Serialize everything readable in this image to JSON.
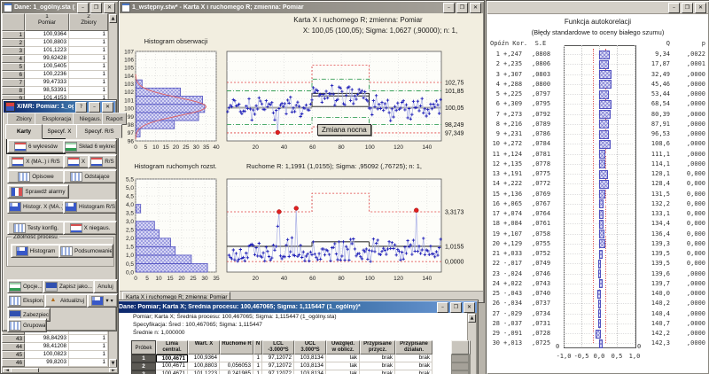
{
  "colors": {
    "titlebar_active": "#0a246a",
    "titlebar_inactive": "#7e7b74",
    "desktop": "#b8b4ab",
    "chart_bg": "#f2eee0",
    "bar_fill": "#dcdcf6",
    "bar_edge": "#5050c0",
    "series": "#2020b8",
    "series_line": "#a8aee6",
    "limit_red": "#e04040",
    "warn_green": "#38a058",
    "center_gray": "#a8a8a8",
    "outlier_red": "#e02020"
  },
  "data_window": {
    "title": "Dane: 1_ogólny.sta (10 zm...",
    "col_headers": [
      {
        "num": "1",
        "label": "Pomiar"
      },
      {
        "num": "2",
        "label": "Zbiory"
      }
    ],
    "rows_top": [
      [
        "1",
        "100,9364",
        "1"
      ],
      [
        "2",
        "100,8803",
        "1"
      ],
      [
        "3",
        "101,1223",
        "1"
      ],
      [
        "4",
        "99,62428",
        "1"
      ],
      [
        "5",
        "100,5405",
        "1"
      ],
      [
        "6",
        "100,2236",
        "1"
      ],
      [
        "7",
        "99,47333",
        "1"
      ],
      [
        "8",
        "98,53391",
        "1"
      ],
      [
        "9",
        "101,4153",
        "1"
      ]
    ],
    "rows_bottom": [
      [
        "42",
        "99,86145",
        "1"
      ],
      [
        "43",
        "98,84293",
        "1"
      ],
      [
        "44",
        "98,41208",
        "1"
      ],
      [
        "45",
        "100,0823",
        "1"
      ],
      [
        "46",
        "99,8203",
        "1"
      ]
    ]
  },
  "xmr_dialog": {
    "title": "X/MR: Pomiar: 1_ogólny.sta",
    "tabs_back": [
      "Zbiory",
      "Eksploracja",
      "Niegaus.",
      "Raport"
    ],
    "tabs_front": [
      "Karty",
      "Specyf. X",
      "Specyf. R/S"
    ],
    "active_tab": "Karty",
    "group_label": "Zdolność procesu",
    "buttons": {
      "six_charts": "6 wykresów",
      "sklad": "Skład 6 wykres.",
      "x_ma_rs": "X (MA..) i R/S",
      "x": "X",
      "rs": "R/S",
      "opisowe": "Opisowe",
      "odstajace": "Odstające",
      "sprawdz": "Sprawdź alarmy",
      "hist_x": "Histogr. X (MA..)",
      "hist_rs": "Histogram R/S",
      "testy": "Testy konfig.",
      "x_niegaus": "X niegaus.",
      "histogram": "Histogram",
      "podsumowanie": "Podsumowanie",
      "opcje": "Opcje...",
      "zapisz": "Zapisz jako...",
      "anuluj": "Anuluj",
      "eksploruj": "Eksploruj...",
      "aktualizuj": "Aktualizuj",
      "dropdown": "▾",
      "zabezpiecz": "Zabezpiecz.",
      "grupowani": "Grupowani"
    }
  },
  "chart_window": {
    "title": "1_wstępny.stw* - Karta X i ruchomego R; zmienna: Pomiar",
    "heading1": "Karta X i ruchomego R; zmienna:  Pomiar",
    "heading2": "X: 100,05 (100,05); Sigma: 1,0627 (,90000); n: 1,",
    "hist_obs_title": "Histogram obserwacji",
    "hist_mr_title": "Histogram ruchomych rozst.",
    "r_title": "Ruchome R: 1,1991 (1,0155); Sigma: ,95092 (,76725); n: 1,",
    "tab_label": "Karta X i ruchomego R; zmienna: Pomiar"
  },
  "chart_data": {
    "hist_obs": {
      "type": "bar",
      "orientation": "horizontal",
      "title": "Histogram obserwacji",
      "categories": [
        97,
        98,
        99,
        100,
        101,
        102,
        103
      ],
      "values": [
        2,
        19,
        31,
        34,
        33,
        22,
        3
      ],
      "xlim": [
        0,
        40
      ],
      "ylim": [
        96,
        107
      ],
      "x_ticks": [
        0,
        5,
        10,
        15,
        20,
        25,
        30,
        35,
        40
      ],
      "curve": {
        "mean": 100.2,
        "sd": 1.12,
        "peak": 35
      }
    },
    "x_chart": {
      "type": "line",
      "n": 150,
      "center": 100.05,
      "ucl": 102.75,
      "lcl": 97.349,
      "warn_hi": 101.85,
      "warn_lo": 98.249,
      "ylim": [
        96.49,
        106.07
      ],
      "shift": {
        "from": 59,
        "to": 99,
        "center": 101.3,
        "ucl": 104.6,
        "lcl": 98.0,
        "warn_hi": 103.1,
        "warn_lo": 99.0
      },
      "x_ticks": [
        20,
        40,
        60,
        80,
        100,
        120,
        140
      ],
      "right_labels": [
        "102,75",
        "101,85",
        "100,05",
        "98,249",
        "97,349"
      ],
      "right_label_vals": [
        102.75,
        101.85,
        100.05,
        98.249,
        97.349
      ],
      "outlier": {
        "index": 35,
        "value": 97.4
      },
      "annotation": "Zmiana nocna"
    },
    "hist_mr": {
      "type": "bar",
      "orientation": "horizontal",
      "title": "Histogram ruchomych rozst.",
      "bin_width": 0.5,
      "values": [
        31,
        24,
        17,
        15,
        10,
        8,
        0,
        2
      ],
      "xlim": [
        0,
        35
      ],
      "ylim": [
        0,
        5.5
      ],
      "x_ticks": [
        0,
        5,
        10,
        15,
        20,
        25,
        30,
        35
      ],
      "y_ticks": [
        "5,5",
        "5,0",
        "4,5",
        "4,0",
        "3,5",
        "3,0",
        "2,5",
        "2,0",
        "1,5",
        "1,0",
        "0,5",
        "0,0"
      ]
    },
    "r_chart": {
      "type": "line",
      "n": 150,
      "center": 1.0155,
      "ucl": 3.3173,
      "lcl": 0.0,
      "ylim": [
        -0.7,
        5.5
      ],
      "shift": {
        "from": 59,
        "to": 99,
        "center": 1.32,
        "ucl": 4.55
      },
      "x_ticks": [
        20,
        40,
        60,
        80,
        100,
        120,
        140
      ],
      "right_labels": [
        "3,3173",
        "1,0155",
        "0,0000"
      ],
      "right_label_vals": [
        3.3173,
        1.0155,
        0.0
      ],
      "outliers": [
        {
          "index": 36,
          "value": 3.32
        },
        {
          "index": 48,
          "value": 3.55
        },
        {
          "index": 132,
          "value": 3.42
        }
      ]
    },
    "autocorr": {
      "type": "bar",
      "orientation": "horizontal",
      "xlim": [
        -1,
        1
      ],
      "conf": 0.17,
      "x_ticks": [
        "-1,0",
        "-0,5",
        "0,0",
        "0,5",
        "1,0"
      ],
      "zero_label": "0"
    }
  },
  "autocorr_window": {
    "title1": "Funkcja autokorelacji",
    "title2": "(Błędy standardowe to oceny białego szumu)",
    "headers": {
      "lag": "Opóźn",
      "kor": "Kor.",
      "se": "S.E",
      "q": "Q",
      "p": "p"
    },
    "rows": [
      {
        "lag": "1",
        "kor": "+,247",
        "se": ",0808",
        "q": "9,34",
        "p": ",0022",
        "v": 0.247
      },
      {
        "lag": "2",
        "kor": "+,235",
        "se": ",0806",
        "q": "17,87",
        "p": ",0001",
        "v": 0.235
      },
      {
        "lag": "3",
        "kor": "+,307",
        "se": ",0803",
        "q": "32,49",
        "p": ",0000",
        "v": 0.307
      },
      {
        "lag": "4",
        "kor": "+,288",
        "se": ",0800",
        "q": "45,46",
        "p": ",0000",
        "v": 0.288
      },
      {
        "lag": "5",
        "kor": "+,225",
        "se": ",0797",
        "q": "53,44",
        "p": ",0000",
        "v": 0.225
      },
      {
        "lag": "6",
        "kor": "+,309",
        "se": ",0795",
        "q": "68,54",
        "p": ",0000",
        "v": 0.309
      },
      {
        "lag": "7",
        "kor": "+,273",
        "se": ",0792",
        "q": "80,39",
        "p": ",0000",
        "v": 0.273
      },
      {
        "lag": "8",
        "kor": "+,216",
        "se": ",0789",
        "q": "87,91",
        "p": ",0000",
        "v": 0.216
      },
      {
        "lag": "9",
        "kor": "+,231",
        "se": ",0786",
        "q": "96,53",
        "p": ",0000",
        "v": 0.231
      },
      {
        "lag": "10",
        "kor": "+,272",
        "se": ",0784",
        "q": "108,6",
        "p": ",0000",
        "v": 0.272
      },
      {
        "lag": "11",
        "kor": "+,124",
        "se": ",0781",
        "q": "111,1",
        "p": ",0000",
        "v": 0.124
      },
      {
        "lag": "12",
        "kor": "+,135",
        "se": ",0778",
        "q": "114,1",
        "p": ",0000",
        "v": 0.135
      },
      {
        "lag": "13",
        "kor": "+,191",
        "se": ",0775",
        "q": "120,1",
        "p": "0,000",
        "v": 0.191
      },
      {
        "lag": "14",
        "kor": "+,222",
        "se": ",0772",
        "q": "128,4",
        "p": "0,000",
        "v": 0.222
      },
      {
        "lag": "15",
        "kor": "+,136",
        "se": ",0769",
        "q": "131,5",
        "p": "0,000",
        "v": 0.136
      },
      {
        "lag": "16",
        "kor": "+,065",
        "se": ",0767",
        "q": "132,2",
        "p": "0,000",
        "v": 0.065
      },
      {
        "lag": "17",
        "kor": "+,074",
        "se": ",0764",
        "q": "133,1",
        "p": "0,000",
        "v": 0.074
      },
      {
        "lag": "18",
        "kor": "+,084",
        "se": ",0761",
        "q": "134,4",
        "p": "0,000",
        "v": 0.084
      },
      {
        "lag": "19",
        "kor": "+,107",
        "se": ",0758",
        "q": "136,4",
        "p": "0,000",
        "v": 0.107
      },
      {
        "lag": "20",
        "kor": "+,129",
        "se": ",0755",
        "q": "139,3",
        "p": "0,000",
        "v": 0.129
      },
      {
        "lag": "21",
        "kor": "+,033",
        "se": ",0752",
        "q": "139,5",
        "p": "0,000",
        "v": 0.033
      },
      {
        "lag": "22",
        "kor": "-,017",
        "se": ",0749",
        "q": "139,5",
        "p": "0,000",
        "v": -0.017
      },
      {
        "lag": "23",
        "kor": "-,024",
        "se": ",0746",
        "q": "139,6",
        "p": ",0000",
        "v": -0.024
      },
      {
        "lag": "24",
        "kor": "+,022",
        "se": ",0743",
        "q": "139,7",
        "p": ",0000",
        "v": 0.022
      },
      {
        "lag": "25",
        "kor": "-,043",
        "se": ",0740",
        "q": "140,0",
        "p": ",0000",
        "v": -0.043
      },
      {
        "lag": "26",
        "kor": "-,034",
        "se": ",0737",
        "q": "140,2",
        "p": ",0000",
        "v": -0.034
      },
      {
        "lag": "27",
        "kor": "-,029",
        "se": ",0734",
        "q": "140,4",
        "p": ",0000",
        "v": -0.029
      },
      {
        "lag": "28",
        "kor": "-,037",
        "se": ",0731",
        "q": "140,7",
        "p": ",0000",
        "v": -0.037
      },
      {
        "lag": "29",
        "kor": "-,091",
        "se": ",0728",
        "q": "142,2",
        "p": ",0000",
        "v": -0.091
      },
      {
        "lag": "30",
        "kor": "+,013",
        "se": ",0725",
        "q": "142,3",
        "p": ",0000",
        "v": 0.013
      }
    ]
  },
  "table_window": {
    "title": "Dane: Pomiar; Karta X; Średnia procesu: 100,467065; Sigma: 1,115447 (1_ogólny)*",
    "info_lines": [
      "Pomiar; Karta X; Średnia procesu: 100,467065; Sigma: 1,115447 (1_ogólny.sta)",
      "Specyfikacja: Śred : 100,467065; Sigma: 1,115447",
      "Średnie n: 1,000000"
    ],
    "row_header": "Próbek",
    "headers": [
      [
        "Linia",
        "central."
      ],
      [
        "Wart. X",
        ""
      ],
      [
        "Ruchome R",
        ""
      ],
      [
        "N",
        ""
      ],
      [
        "LCL",
        "-3.000*S"
      ],
      [
        "UCL",
        "3.000*S"
      ],
      [
        "Uwzględ.",
        "w oblicz."
      ],
      [
        "Przypisane",
        "przycz."
      ],
      [
        "Przypisane",
        "działan."
      ]
    ],
    "rows": [
      [
        "1",
        "100,4671",
        "100,9364",
        "",
        "1",
        "97,12072",
        "103,8134",
        "tak",
        "brak",
        "brak"
      ],
      [
        "2",
        "100,4671",
        "100,8803",
        "0,056053",
        "1",
        "97,12072",
        "103,8134",
        "tak",
        "brak",
        "brak"
      ],
      [
        "3",
        "100,4671",
        "101,1223",
        "0,241985",
        "1",
        "97,12072",
        "103,8134",
        "tak",
        "brak",
        "brak"
      ]
    ]
  }
}
